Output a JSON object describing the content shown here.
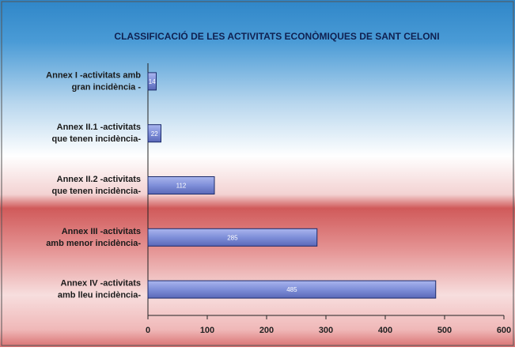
{
  "chart_data": {
    "type": "barh",
    "title": "CLASSIFICACIÓ DE LES ACTIVITATS ECONÒMIQUES DE SANT CELONI",
    "categories": [
      [
        "Annex I -activitats amb",
        "gran incidència -"
      ],
      [
        "Annex II.1 -activitats",
        "que tenen incidència-"
      ],
      [
        "Annex II.2 -activitats",
        "que tenen incidència-"
      ],
      [
        "Annex III -activitats",
        "amb menor incidència-"
      ],
      [
        "Annex IV -activitats",
        "amb lleu incidència-"
      ]
    ],
    "values": [
      14,
      22,
      112,
      285,
      485
    ],
    "color": "#7f8fd9",
    "xlim": [
      0,
      600
    ],
    "xticks": [
      0,
      100,
      200,
      300,
      400,
      500,
      600
    ]
  }
}
